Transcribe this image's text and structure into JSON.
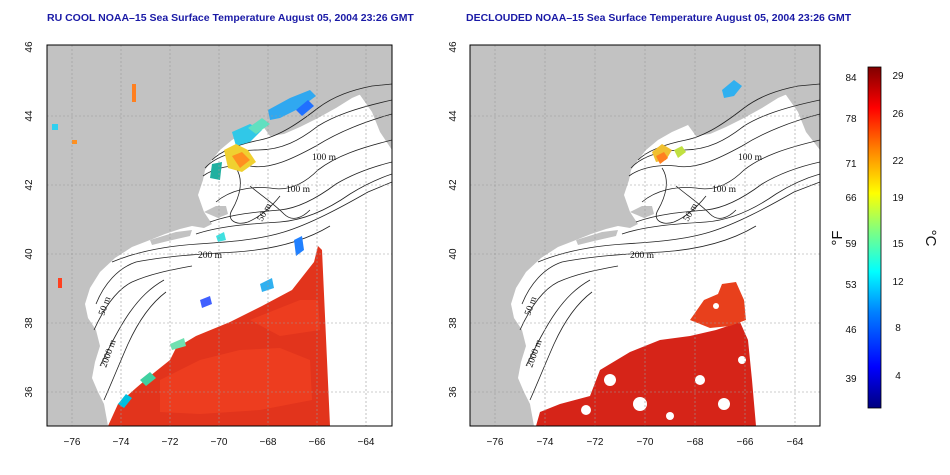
{
  "maps": [
    {
      "title": "RU COOL NOAA–15 Sea Surface Temperature August 05, 2004 23:26 GMT",
      "contour_labels": [
        "100 m",
        "100 m",
        "50 m",
        "200 m",
        "50 m",
        "2000 m"
      ]
    },
    {
      "title": "DECLOUDED NOAA–15 Sea Surface Temperature August 05, 2004 23:26 GMT",
      "contour_labels": [
        "100 m",
        "100 m",
        "50 m",
        "200 m",
        "50 m",
        "2000 m"
      ]
    }
  ],
  "axes": {
    "lon_ticks": [
      "−76",
      "−74",
      "−72",
      "−70",
      "−68",
      "−66",
      "−64"
    ],
    "lat_ticks": [
      "36",
      "38",
      "40",
      "42",
      "44",
      "46"
    ],
    "lon_range": [
      -77,
      -63
    ],
    "lat_range": [
      35,
      46
    ]
  },
  "colorbar": {
    "fahrenheit_unit": "°F",
    "celsius_unit": "°C",
    "fahrenheit_ticks": [
      "84",
      "78",
      "71",
      "66",
      "59",
      "53",
      "46",
      "39"
    ],
    "celsius_ticks": [
      "29",
      "26",
      "22",
      "19",
      "15",
      "12",
      "8",
      "4"
    ],
    "colors": [
      "#00007f",
      "#0000ff",
      "#0080ff",
      "#00ffff",
      "#80ff80",
      "#ffff00",
      "#ff8000",
      "#ff0000",
      "#800000"
    ]
  },
  "colors": {
    "land": "#c2c2c2",
    "water": "#ffffff",
    "sst_warm": "#e2341c",
    "title": "#1a1aa6"
  }
}
